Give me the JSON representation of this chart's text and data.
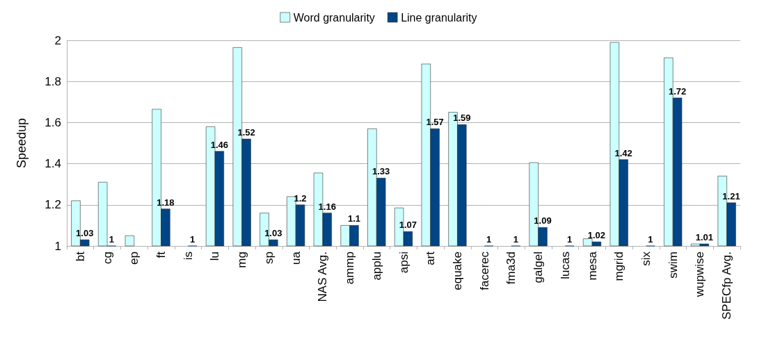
{
  "chart_data": {
    "type": "bar",
    "ylabel": "Speedup",
    "categories": [
      "bt",
      "cg",
      "ep",
      "ft",
      "is",
      "lu",
      "mg",
      "sp",
      "ua",
      "NAS Avg.",
      "ammp",
      "applu",
      "apsi",
      "art",
      "equake",
      "facerec",
      "fma3d",
      "galgel",
      "lucas",
      "mesa",
      "mgrid",
      "six",
      "swim",
      "wupwise",
      "SPECfp Avg."
    ],
    "series": [
      {
        "name": "Word granularity",
        "color": "#ccffff",
        "values": [
          1.22,
          1.31,
          1.05,
          1.665,
          null,
          1.58,
          1.965,
          1.16,
          1.24,
          1.355,
          1.1,
          1.57,
          1.185,
          1.885,
          1.65,
          null,
          null,
          1.405,
          null,
          1.035,
          1.99,
          null,
          1.915,
          1.01,
          1.34
        ]
      },
      {
        "name": "Line granularity",
        "color": "#004586",
        "values": [
          1.03,
          1,
          null,
          1.18,
          1,
          1.46,
          1.52,
          1.03,
          1.2,
          1.16,
          1.1,
          1.33,
          1.07,
          1.57,
          1.59,
          1,
          1,
          1.09,
          1,
          1.02,
          1.42,
          1,
          1.72,
          1.01,
          1.21
        ],
        "value_labels": [
          "1.03",
          "1",
          null,
          "1.18",
          "1",
          "1.46",
          "1.52",
          "1.03",
          "1.2",
          "1.16",
          "1.1",
          "1.33",
          "1.07",
          "1.57",
          "1.59",
          "1",
          "1",
          "1.09",
          "1",
          "1.02",
          "1.42",
          "1",
          "1.72",
          "1.01",
          "1.21"
        ]
      }
    ],
    "ylim": [
      1,
      2
    ],
    "yticks": [
      1,
      1.2,
      1.4,
      1.6,
      1.8,
      2
    ],
    "grid": "y",
    "legend": "top"
  }
}
